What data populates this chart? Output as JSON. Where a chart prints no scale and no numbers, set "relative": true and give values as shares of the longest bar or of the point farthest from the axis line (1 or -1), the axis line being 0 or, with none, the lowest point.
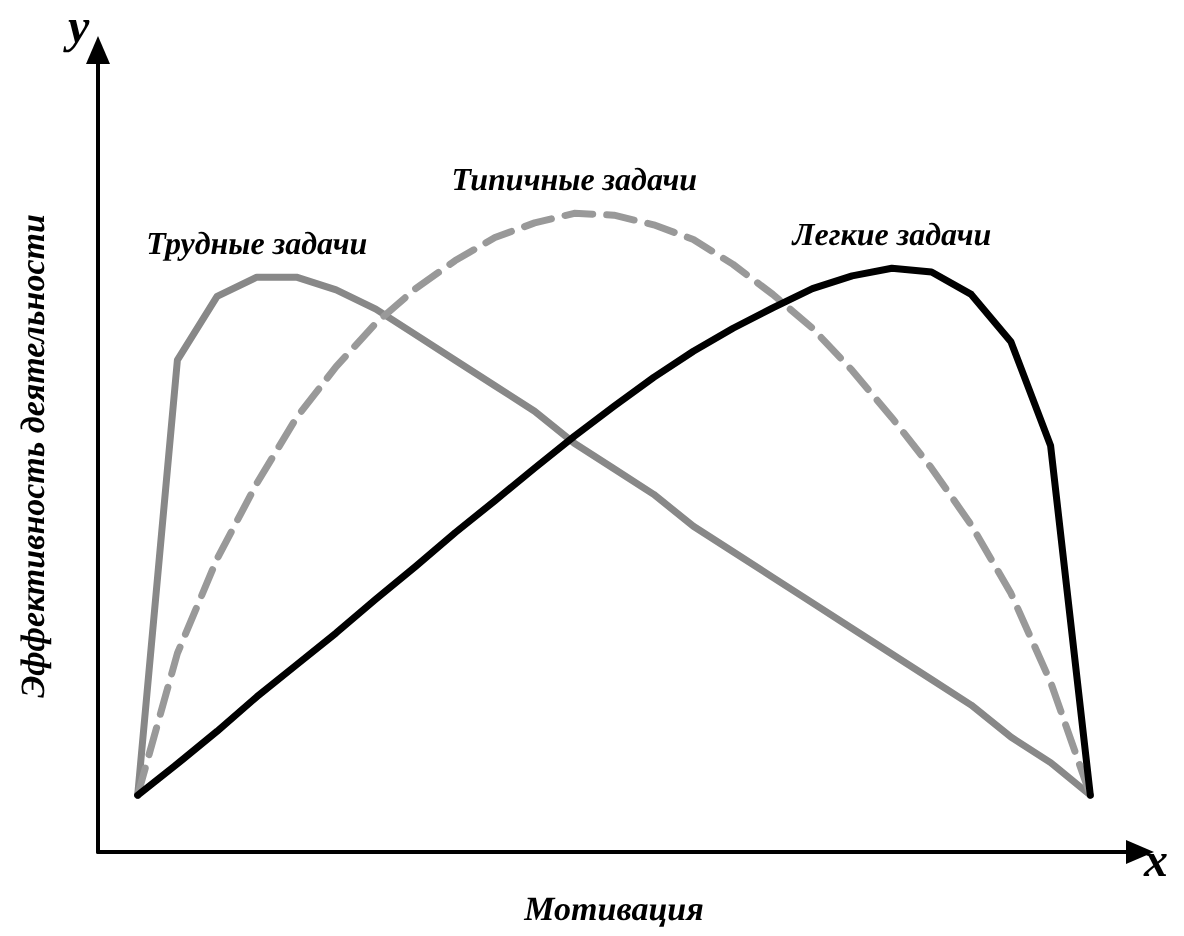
{
  "chart_data": {
    "type": "line",
    "relative": true,
    "xlabel": "Мотивация",
    "ylabel": "Эффективность деятельности",
    "annotations": [
      "y",
      "x"
    ],
    "grid": false,
    "legend": false,
    "marker": "none",
    "categories": [
      null,
      null,
      null,
      null,
      null,
      null,
      null,
      null,
      null,
      null,
      null,
      null,
      null,
      null,
      null,
      null,
      null,
      null,
      null,
      null,
      null,
      null,
      null,
      null,
      null
    ],
    "series": [
      {
        "name": "Трудные задачи",
        "color": "#888888",
        "line_style": "solid",
        "values": [
          0.089,
          0.77,
          0.87,
          0.9,
          0.9,
          0.88,
          0.85,
          0.81,
          0.77,
          0.73,
          0.69,
          0.64,
          0.6,
          0.56,
          0.51,
          0.47,
          0.43,
          0.39,
          0.35,
          0.31,
          0.27,
          0.23,
          0.18,
          0.14,
          0.089
        ]
      },
      {
        "name": "Типичные задачи",
        "color": "#999999",
        "line_style": "dashed",
        "values": [
          0.089,
          0.311,
          0.459,
          0.577,
          0.68,
          0.76,
          0.828,
          0.882,
          0.926,
          0.962,
          0.985,
          1.0,
          0.997,
          0.982,
          0.959,
          0.92,
          0.873,
          0.82,
          0.754,
          0.68,
          0.601,
          0.512,
          0.405,
          0.266,
          0.089
        ]
      },
      {
        "name": "Легкие задачи",
        "color": "#000000",
        "line_style": "solid",
        "values": [
          0.089,
          0.138,
          0.189,
          0.243,
          0.293,
          0.343,
          0.396,
          0.447,
          0.5,
          0.55,
          0.601,
          0.651,
          0.698,
          0.743,
          0.784,
          0.82,
          0.852,
          0.882,
          0.902,
          0.914,
          0.908,
          0.873,
          0.799,
          0.636,
          0.089
        ]
      }
    ]
  }
}
